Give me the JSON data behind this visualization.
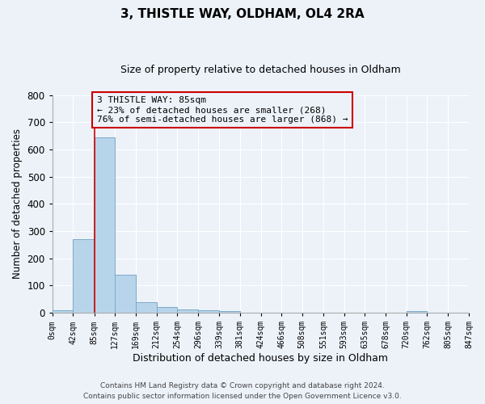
{
  "title": "3, THISTLE WAY, OLDHAM, OL4 2RA",
  "subtitle": "Size of property relative to detached houses in Oldham",
  "xlabel": "Distribution of detached houses by size in Oldham",
  "ylabel": "Number of detached properties",
  "bar_edges": [
    0,
    42,
    85,
    127,
    169,
    212,
    254,
    296,
    339,
    381,
    424,
    466,
    508,
    551,
    593,
    635,
    678,
    720,
    762,
    805,
    847
  ],
  "bar_heights": [
    8,
    272,
    645,
    140,
    38,
    20,
    12,
    10,
    5,
    0,
    0,
    0,
    0,
    0,
    0,
    0,
    0,
    5,
    0,
    0
  ],
  "bar_color": "#b8d4ea",
  "bar_edge_color": "#7aaac8",
  "property_line_x": 85,
  "property_line_color": "#cc0000",
  "annotation_text": "3 THISTLE WAY: 85sqm\n← 23% of detached houses are smaller (268)\n76% of semi-detached houses are larger (868) →",
  "annotation_box_color": "#cc0000",
  "ylim": [
    0,
    800
  ],
  "yticks": [
    0,
    100,
    200,
    300,
    400,
    500,
    600,
    700,
    800
  ],
  "tick_labels": [
    "0sqm",
    "42sqm",
    "85sqm",
    "127sqm",
    "169sqm",
    "212sqm",
    "254sqm",
    "296sqm",
    "339sqm",
    "381sqm",
    "424sqm",
    "466sqm",
    "508sqm",
    "551sqm",
    "593sqm",
    "635sqm",
    "678sqm",
    "720sqm",
    "762sqm",
    "805sqm",
    "847sqm"
  ],
  "footer_line1": "Contains HM Land Registry data © Crown copyright and database right 2024.",
  "footer_line2": "Contains public sector information licensed under the Open Government Licence v3.0.",
  "background_color": "#edf2f9",
  "grid_color": "#ffffff",
  "title_fontsize": 11,
  "subtitle_fontsize": 9,
  "ylabel_fontsize": 8.5,
  "xlabel_fontsize": 9,
  "ytick_fontsize": 8.5,
  "xtick_fontsize": 7,
  "footer_fontsize": 6.5
}
